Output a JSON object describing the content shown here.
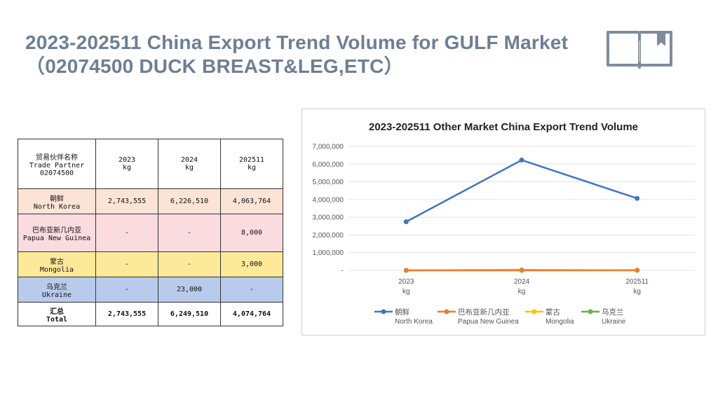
{
  "page": {
    "title_line1": "2023-202511  China Export Trend Volume for GULF Market",
    "title_line2": "（02074500 DUCK BREAST&LEG,ETC）",
    "book_icon": "open-book-icon",
    "accent_color": "#6e7f93"
  },
  "table": {
    "header": {
      "col0": [
        "贸易伙伴名称",
        "Trade Partner",
        "02074500"
      ],
      "col1": [
        "2023",
        "kg"
      ],
      "col2": [
        "2024",
        "kg"
      ],
      "col3": [
        "202511",
        "kg"
      ]
    },
    "rows": [
      {
        "cn": "朝鲜",
        "en": "North Korea",
        "v2023": "2,743,555",
        "v2024": "6,226,510",
        "v202511": "4,063,764"
      },
      {
        "cn": "巴布亚新几内亚",
        "en": "Papua New Guinea",
        "v2023": "-",
        "v2024": "-",
        "v202511": "8,000"
      },
      {
        "cn": "蒙古",
        "en": "Mongolia",
        "v2023": "-",
        "v2024": "-",
        "v202511": "3,000"
      },
      {
        "cn": "乌克兰",
        "en": "Ukraine",
        "v2023": "-",
        "v2024": "23,000",
        "v202511": "-"
      }
    ],
    "total": {
      "cn": "汇总",
      "en": "Total",
      "v2023": "2,743,555",
      "v2024": "6,249,510",
      "v202511": "4,074,764"
    }
  },
  "chart_data": {
    "type": "line",
    "title": "2023-202511 Other Market China Export Trend Volume",
    "categories": [
      [
        "2023",
        "kg"
      ],
      [
        "2024",
        "kg"
      ],
      [
        "202511",
        "kg"
      ]
    ],
    "ylim": [
      0,
      7000000
    ],
    "yticks": [
      {
        "value": 0,
        "label": "-"
      },
      {
        "value": 1000000,
        "label": "1,000,000"
      },
      {
        "value": 2000000,
        "label": "2,000,000"
      },
      {
        "value": 3000000,
        "label": "3,000,000"
      },
      {
        "value": 4000000,
        "label": "4,000,000"
      },
      {
        "value": 5000000,
        "label": "5,000,000"
      },
      {
        "value": 6000000,
        "label": "6,000,000"
      },
      {
        "value": 7000000,
        "label": "7,000,000"
      }
    ],
    "grid": true,
    "legend": "bottom",
    "series": [
      {
        "name": "朝鲜",
        "name_en": "North Korea",
        "color": "#4472c4",
        "values": [
          2743555,
          6226510,
          4063764
        ]
      },
      {
        "name": "巴布亚新几内亚",
        "name_en": "Papua New Guinea",
        "color": "#ed7d31",
        "values": [
          0,
          0,
          8000
        ]
      },
      {
        "name": "蒙古",
        "name_en": "Mongolia",
        "color": "#ffc000",
        "values": [
          0,
          0,
          3000
        ]
      },
      {
        "name": "乌克兰",
        "name_en": "Ukraine",
        "color": "#70ad47",
        "values": [
          0,
          23000,
          0
        ]
      }
    ]
  }
}
